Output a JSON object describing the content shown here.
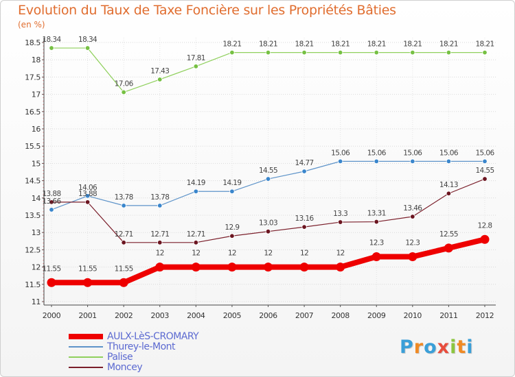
{
  "title": "Evolution du Taux de Taxe Foncière sur les Propriétés Bâties",
  "unit_label": "(en %)",
  "logo": {
    "letters": [
      "P",
      "r",
      "o",
      "x",
      "i",
      "t",
      "i"
    ],
    "colors": [
      "#3a9fd8",
      "#f08a24",
      "#3a9fd8",
      "#e84d3d",
      "#8cc63f",
      "#f08a24",
      "#3a9fd8"
    ]
  },
  "chart_data": {
    "type": "line",
    "x": [
      "2000",
      "2001",
      "2002",
      "2003",
      "2004",
      "2005",
      "2006",
      "2007",
      "2008",
      "2009",
      "2010",
      "2011",
      "2012"
    ],
    "ylim": [
      11,
      18.5
    ],
    "yticks": [
      "11",
      "11.5",
      "12",
      "12.5",
      "13",
      "13.5",
      "14",
      "14.5",
      "15",
      "15.5",
      "16",
      "16.5",
      "17",
      "17.5",
      "18",
      "18.5"
    ],
    "ytick_values": [
      11,
      11.5,
      12,
      12.5,
      13,
      13.5,
      14,
      14.5,
      15,
      15.5,
      16,
      16.5,
      17,
      17.5,
      18,
      18.5
    ],
    "grid": "horizontal",
    "legend_position": "bottom-left",
    "series": [
      {
        "name": "AULX-LèS-CROMARY",
        "color": "#ee0000",
        "style": "thick",
        "values": [
          11.55,
          11.55,
          11.55,
          12,
          12,
          12,
          12,
          12,
          12,
          12.3,
          12.3,
          12.55,
          12.8
        ],
        "labels": [
          "11.55",
          "11.55",
          "11.55",
          "12",
          "12",
          "12",
          "12",
          "12",
          "12",
          "12.3",
          "12.3",
          "12.55",
          "12.8"
        ]
      },
      {
        "name": "Thurey-le-Mont",
        "color": "#5d93c9",
        "marker": "#3a86cc",
        "values": [
          13.66,
          14.06,
          13.78,
          13.78,
          14.19,
          14.19,
          14.55,
          14.77,
          15.06,
          15.06,
          15.06,
          15.06,
          15.06
        ],
        "labels": [
          "13.66",
          "14.06",
          "13.78",
          "13.78",
          "14.19",
          "14.19",
          "14.55",
          "14.77",
          "15.06",
          "15.06",
          "15.06",
          "15.06",
          "15.06"
        ]
      },
      {
        "name": "Palise",
        "color": "#8fd05c",
        "marker": "#76c043",
        "values": [
          18.34,
          18.34,
          17.06,
          17.43,
          17.81,
          18.21,
          18.21,
          18.21,
          18.21,
          18.21,
          18.21,
          18.21,
          18.21
        ],
        "labels": [
          "18.34",
          "18.34",
          "17.06",
          "17.43",
          "17.81",
          "18.21",
          "18.21",
          "18.21",
          "18.21",
          "18.21",
          "18.21",
          "18.21",
          "18.21"
        ]
      },
      {
        "name": "Moncey",
        "color": "#7a1e2a",
        "marker": "#6b1520",
        "values": [
          13.88,
          13.88,
          12.71,
          12.71,
          12.71,
          12.9,
          13.03,
          13.16,
          13.3,
          13.31,
          13.46,
          14.13,
          14.55
        ],
        "labels": [
          "13.88",
          "13.88",
          "12.71",
          "12.71",
          "12.71",
          "12.9",
          "13.03",
          "13.16",
          "13.3",
          "13.31",
          "13.46",
          "14.13",
          "14.55"
        ]
      }
    ]
  }
}
